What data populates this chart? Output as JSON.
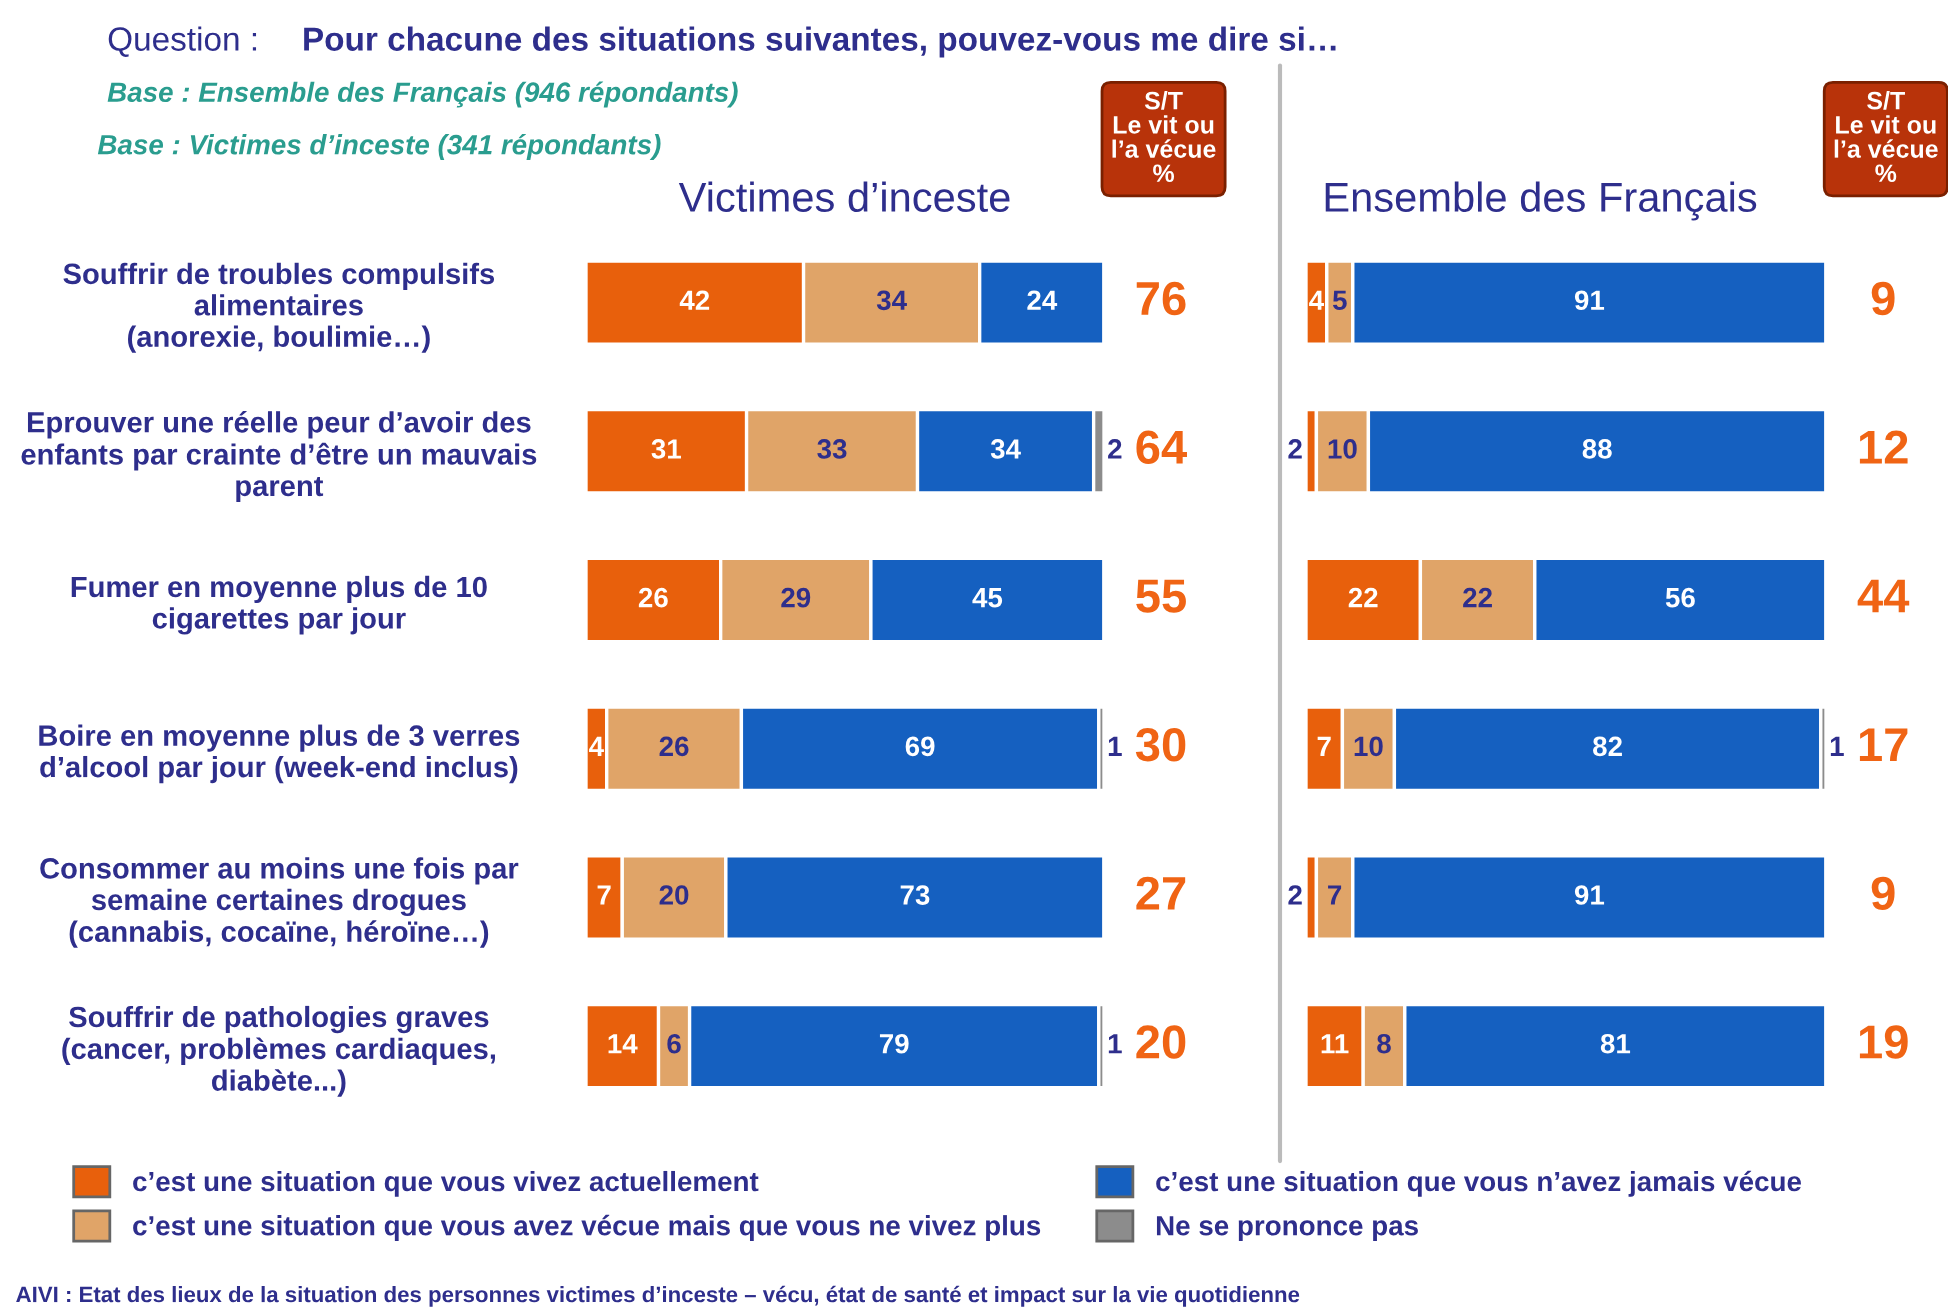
{
  "chart_data": [
    {
      "type": "bar",
      "orientation": "horizontal",
      "stacked": true,
      "title": "Victimes d’inceste",
      "categories": [
        "Souffrir de troubles compulsifs\nalimentaires\n(anorexie, boulimie…)",
        "Eprouver une réelle peur d’avoir des\nenfants par crainte d’être un mauvais\nparent",
        "Fumer en moyenne plus de 10\ncigarettes par jour",
        "Boire en moyenne plus de 3 verres\nd’alcool par jour (week-end inclus)",
        "Consommer au moins une fois par\nsemaine certaines drogues\n(cannabis, cocaïne, héroïne…)",
        "Souffrir de pathologies graves\n(cancer, problèmes cardiaques,\ndiabète...)"
      ],
      "series": [
        {
          "name": "c’est une situation que vous vivez actuellement",
          "color": "#e8600c",
          "values": [
            42,
            31,
            26,
            4,
            7,
            14
          ]
        },
        {
          "name": "c’est une situation que vous avez vécue mais que vous ne vivez plus",
          "color": "#e0a468",
          "values": [
            34,
            33,
            29,
            26,
            20,
            6
          ]
        },
        {
          "name": "c’est une situation que vous n’avez jamais vécue",
          "color": "#1560c0",
          "values": [
            24,
            34,
            45,
            69,
            73,
            79
          ]
        },
        {
          "name": "Ne se prononce pas",
          "color": "#8c8c8c",
          "values": [
            null,
            2,
            null,
            1,
            null,
            1
          ]
        }
      ],
      "xlim": [
        0,
        100
      ],
      "tick_labels": "y",
      "data_labels": true,
      "legend": "bottom",
      "annotations": [
        "Question :",
        "Pour chacune des situations suivantes, pouvez-vous me dire si…",
        "Base : Ensemble des Français (946 répondants)",
        "Base : Victimes d’inceste (341 répondants)",
        "S/T\nLe vit ou\nl’a vécue\n%",
        "AIVI : Etat des lieux de la situation des personnes victimes d’inceste – vécu, état de santé et impact sur la vie quotidienne",
        "76",
        "64",
        "55",
        "30",
        "27",
        "20"
      ]
    },
    {
      "type": "bar",
      "orientation": "horizontal",
      "stacked": true,
      "title": "Ensemble des Français",
      "categories": [
        null,
        null,
        null,
        null,
        null,
        null
      ],
      "series": [
        {
          "color": "#e8600c",
          "values": [
            4,
            2,
            22,
            7,
            2,
            11
          ]
        },
        {
          "color": "#e0a468",
          "values": [
            5,
            10,
            22,
            10,
            7,
            8
          ]
        },
        {
          "color": "#1560c0",
          "values": [
            91,
            88,
            56,
            82,
            91,
            81
          ]
        },
        {
          "color": "#8c8c8c",
          "values": [
            null,
            null,
            null,
            1,
            null,
            null
          ]
        }
      ],
      "xlim": [
        0,
        100
      ],
      "tick_labels": false,
      "data_labels": true,
      "annotations": [
        "S/T\nLe vit ou\nl’a vécue\n%",
        "9",
        "12",
        "44",
        "17",
        "9",
        "19"
      ]
    }
  ]
}
